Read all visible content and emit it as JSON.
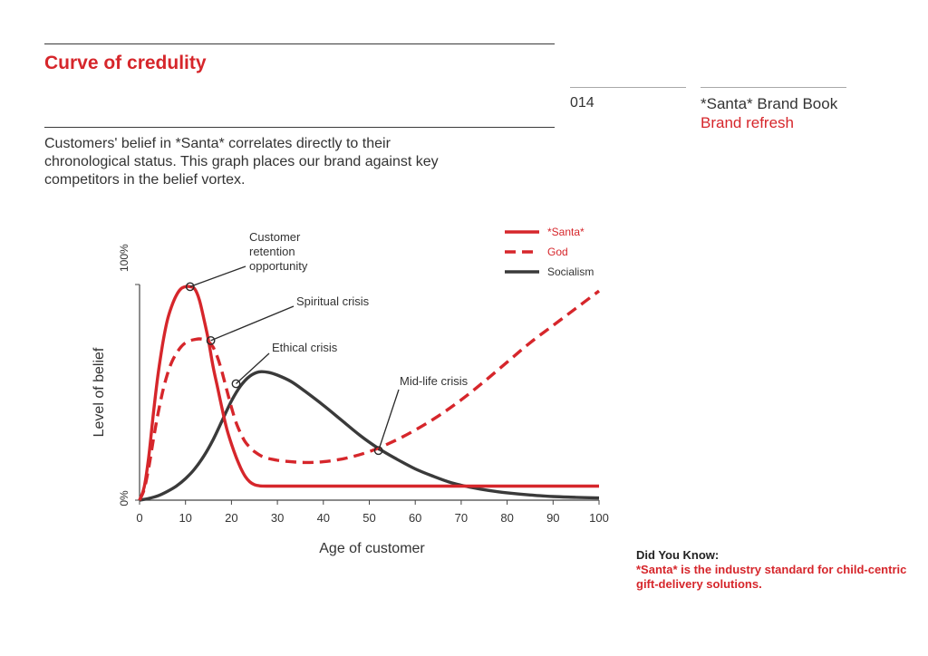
{
  "header": {
    "title": "Curve of credulity",
    "page_number": "014",
    "book_title": "*Santa* Brand Book",
    "book_subtitle": "Brand refresh"
  },
  "intro": "Customers' belief in *Santa* correlates directly to their chronological status. This graph places our brand against key competitors in the belief vortex.",
  "did_you_know": {
    "heading": "Did You Know:",
    "text": "*Santa* is the industry standard for child-centric gift-delivery solutions."
  },
  "colors": {
    "red": "#d6262b",
    "dark": "#3a3a3a"
  },
  "chart_data": {
    "type": "line",
    "xlabel": "Age of customer",
    "ylabel": "Level of belief",
    "xlim": [
      0,
      100
    ],
    "ylim": [
      0,
      100
    ],
    "xticks": [
      0,
      10,
      20,
      30,
      40,
      50,
      60,
      70,
      80,
      90,
      100
    ],
    "ytick_labels": [
      {
        "value": 0,
        "label": "0%"
      },
      {
        "value": 100,
        "label": "100%"
      }
    ],
    "grid": false,
    "legend_position": "top-right",
    "series": [
      {
        "name": "*Santa*",
        "color": "#d6262b",
        "style": "solid",
        "points": [
          [
            0,
            0
          ],
          [
            1,
            6
          ],
          [
            2,
            20
          ],
          [
            3,
            40
          ],
          [
            4,
            58
          ],
          [
            5,
            72
          ],
          [
            6,
            83
          ],
          [
            7,
            90
          ],
          [
            8,
            95
          ],
          [
            9,
            98
          ],
          [
            10,
            99
          ],
          [
            11,
            99
          ],
          [
            12,
            98
          ],
          [
            13,
            93
          ],
          [
            14,
            84
          ],
          [
            15,
            74
          ],
          [
            16,
            62
          ],
          [
            17,
            52
          ],
          [
            18,
            42
          ],
          [
            19,
            33
          ],
          [
            20,
            26
          ],
          [
            21,
            20
          ],
          [
            22,
            15
          ],
          [
            23,
            11
          ],
          [
            24,
            8.5
          ],
          [
            25,
            7.2
          ],
          [
            26,
            6.7
          ],
          [
            28,
            6.5
          ],
          [
            40,
            6.5
          ],
          [
            60,
            6.5
          ],
          [
            80,
            6.5
          ],
          [
            100,
            6.5
          ]
        ]
      },
      {
        "name": "God",
        "color": "#d6262b",
        "style": "dashed",
        "points": [
          [
            0,
            0
          ],
          [
            1,
            5
          ],
          [
            2,
            15
          ],
          [
            3,
            28
          ],
          [
            4,
            40
          ],
          [
            5,
            50
          ],
          [
            6,
            58
          ],
          [
            7,
            64
          ],
          [
            8,
            68
          ],
          [
            9,
            71
          ],
          [
            10,
            73
          ],
          [
            11,
            74
          ],
          [
            12,
            74.5
          ],
          [
            13,
            74.8
          ],
          [
            14,
            74.5
          ],
          [
            15,
            73.5
          ],
          [
            16,
            71
          ],
          [
            17,
            66
          ],
          [
            18,
            59
          ],
          [
            19,
            51
          ],
          [
            20,
            43
          ],
          [
            21,
            36
          ],
          [
            22,
            31
          ],
          [
            23,
            27
          ],
          [
            24,
            24.5
          ],
          [
            25,
            22.5
          ],
          [
            27,
            20
          ],
          [
            30,
            18.5
          ],
          [
            33,
            17.8
          ],
          [
            36,
            17.5
          ],
          [
            40,
            17.8
          ],
          [
            45,
            19.5
          ],
          [
            50,
            22.5
          ],
          [
            55,
            27
          ],
          [
            60,
            32.5
          ],
          [
            65,
            39
          ],
          [
            70,
            46.5
          ],
          [
            75,
            55
          ],
          [
            80,
            64
          ],
          [
            85,
            73
          ],
          [
            90,
            81
          ],
          [
            95,
            89
          ],
          [
            100,
            97
          ]
        ]
      },
      {
        "name": "Socialism",
        "color": "#3a3a3a",
        "style": "solid",
        "points": [
          [
            0,
            0
          ],
          [
            2,
            0.8
          ],
          [
            4,
            2
          ],
          [
            6,
            4
          ],
          [
            8,
            6.5
          ],
          [
            10,
            10
          ],
          [
            12,
            14.5
          ],
          [
            14,
            20.5
          ],
          [
            16,
            28
          ],
          [
            18,
            37
          ],
          [
            20,
            46
          ],
          [
            22,
            53
          ],
          [
            24,
            57.5
          ],
          [
            26,
            59.5
          ],
          [
            28,
            59.3
          ],
          [
            30,
            58
          ],
          [
            33,
            55
          ],
          [
            36,
            50.5
          ],
          [
            40,
            44
          ],
          [
            44,
            37
          ],
          [
            48,
            30
          ],
          [
            52,
            24
          ],
          [
            56,
            19
          ],
          [
            60,
            14.5
          ],
          [
            64,
            11
          ],
          [
            68,
            8
          ],
          [
            72,
            6
          ],
          [
            76,
            4.5
          ],
          [
            80,
            3.4
          ],
          [
            85,
            2.4
          ],
          [
            90,
            1.7
          ],
          [
            95,
            1.3
          ],
          [
            100,
            1
          ]
        ]
      }
    ],
    "annotations": [
      {
        "label_lines": [
          "Customer",
          "retention",
          "opportunity"
        ],
        "x": 11,
        "y": 99
      },
      {
        "label_lines": [
          "Spiritual crisis"
        ],
        "x": 15.5,
        "y": 74
      },
      {
        "label_lines": [
          "Ethical crisis"
        ],
        "x": 21,
        "y": 54
      },
      {
        "label_lines": [
          "Mid-life crisis"
        ],
        "x": 52,
        "y": 23
      }
    ]
  }
}
